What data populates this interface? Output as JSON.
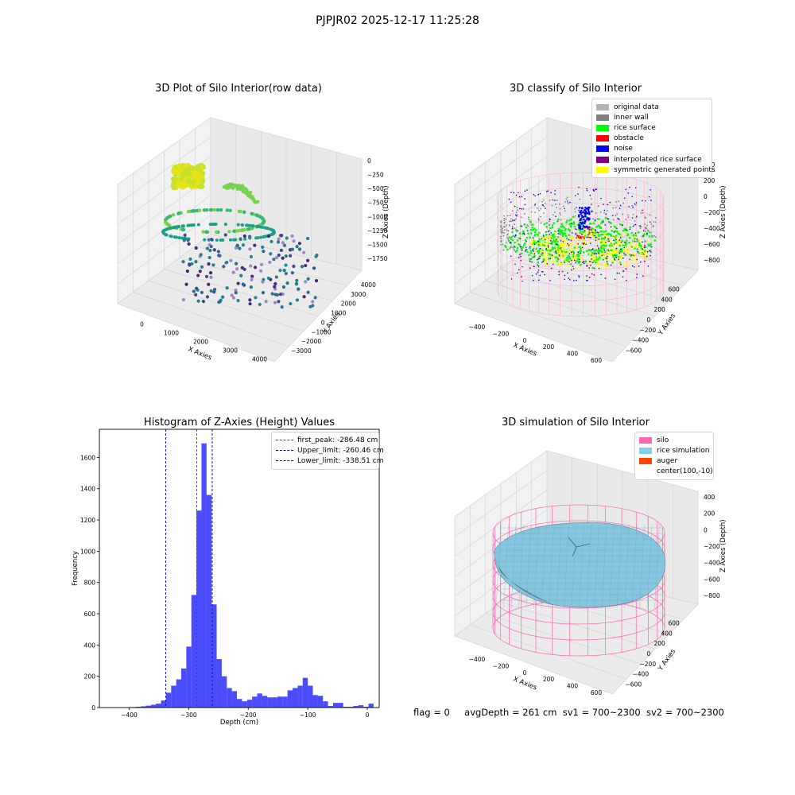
{
  "suptitle": "PJPJR02 2025-12-17 11:25:28",
  "footer": {
    "flag": "flag = 0",
    "avg_depth": "avgDepth = 261 cm",
    "sv1": "sv1 = 700~2300",
    "sv2": "sv2 = 700~2300"
  },
  "panels": {
    "raw": {
      "title": "3D Plot of Silo Interior(row data)",
      "xlabel": "X Axies",
      "ylabel": "Y Axies",
      "zlabel": "Z Axies (Depth)",
      "xticks": [
        "0",
        "1000",
        "2000",
        "3000",
        "4000"
      ],
      "yticks": [
        "4000",
        "3000",
        "2000",
        "1000",
        "0",
        "−1000",
        "−2000",
        "−3000"
      ],
      "zticks": [
        "0",
        "−250",
        "−500",
        "−750",
        "−1000",
        "−1250",
        "−1500",
        "−1750"
      ]
    },
    "classify": {
      "title": "3D classify of Silo Interior",
      "xlabel": "X Axies",
      "ylabel": "Y Axies",
      "zlabel": "Z Axies (Depth)",
      "xticks": [
        "−400",
        "−200",
        "0",
        "200",
        "400",
        "600"
      ],
      "yticks": [
        "600",
        "400",
        "200",
        "0",
        "−200",
        "−400",
        "−600"
      ],
      "zticks": [
        "400",
        "200",
        "0",
        "−200",
        "−400",
        "−600",
        "−800"
      ],
      "legend": [
        {
          "label": "original data",
          "color": "#b3b3b3"
        },
        {
          "label": "inner wall",
          "color": "#808080"
        },
        {
          "label": "rice surface",
          "color": "#00ff00"
        },
        {
          "label": "obstacle",
          "color": "#ff0000"
        },
        {
          "label": "noise",
          "color": "#0000ff"
        },
        {
          "label": "interpolated rice surface",
          "color": "#800080"
        },
        {
          "label": "symmetric generated points",
          "color": "#ffff00"
        }
      ]
    },
    "simulation": {
      "title": "3D simulation of Silo Interior",
      "xlabel": "X Axies",
      "ylabel": "Y Axies",
      "zlabel": "Z Axies (Depth)",
      "xticks": [
        "−400",
        "−200",
        "0",
        "200",
        "400",
        "600"
      ],
      "yticks": [
        "600",
        "400",
        "200",
        "0",
        "−200",
        "−400",
        "−600"
      ],
      "zticks": [
        "400",
        "200",
        "0",
        "−200",
        "−400",
        "−600",
        "−800"
      ],
      "legend": [
        {
          "label": "silo",
          "color": "#ff69b4"
        },
        {
          "label": "rice simulation",
          "color": "#87ceeb"
        },
        {
          "label": "auger",
          "color": "#ff4500"
        },
        {
          "label": "center(100,-10)",
          "color": ""
        }
      ]
    }
  },
  "chart_data": {
    "type": "bar",
    "title": "Histogram of Z-Axies (Height) Values",
    "xlabel": "Depth (cm)",
    "ylabel": "Frequency",
    "xlim": [
      -450,
      20
    ],
    "ylim": [
      0,
      1780
    ],
    "xticks": [
      -400,
      -300,
      -200,
      -100,
      0
    ],
    "yticks": [
      0,
      200,
      400,
      600,
      800,
      1000,
      1200,
      1400,
      1600
    ],
    "bin_width": 8.5,
    "bin_start": -406,
    "bar_color": "#0000ff",
    "values": [
      2,
      3,
      5,
      8,
      12,
      18,
      25,
      45,
      95,
      140,
      180,
      250,
      390,
      720,
      1260,
      1690,
      1360,
      660,
      310,
      200,
      125,
      105,
      55,
      40,
      50,
      70,
      90,
      75,
      65,
      65,
      70,
      70,
      110,
      125,
      140,
      190,
      140,
      80,
      75,
      40,
      10,
      30,
      30,
      5,
      5,
      10,
      15,
      5,
      25
    ],
    "lines": [
      {
        "label": "first_peak: -286.48 cm",
        "x": -286.48,
        "color": "#ff0000"
      },
      {
        "label": "Upper_limit: -260.46 cm",
        "x": -260.46,
        "color": "#00008b"
      },
      {
        "label": "Lower_limit: -338.51 cm",
        "x": -338.51,
        "color": "#0000cd"
      }
    ],
    "legend_position": "top-right"
  }
}
